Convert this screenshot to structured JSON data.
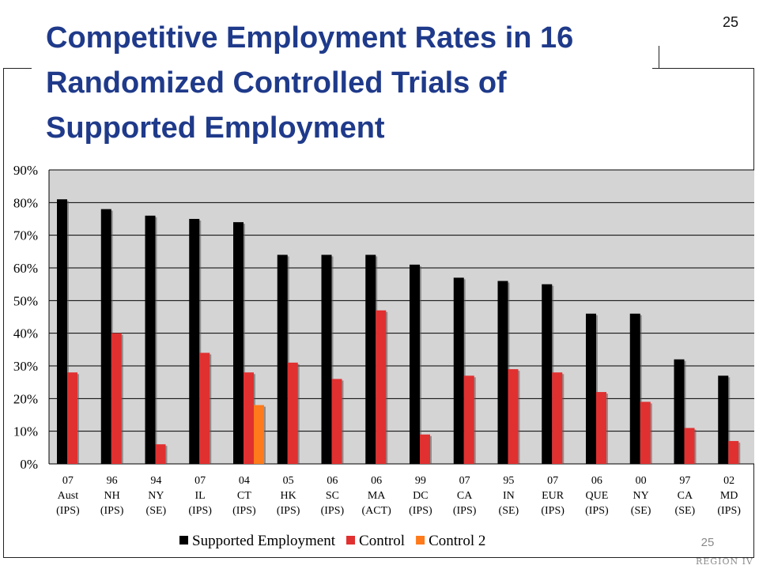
{
  "slide": {
    "title": "Competitive Employment Rates in 16 Randomized Controlled Trials of Supported Employment",
    "slide_number_top": "25",
    "slide_number_bottom": "25",
    "logo_text": "REGION IV"
  },
  "chart_data": {
    "type": "bar",
    "title": "Competitive Employment Rates in 16 Randomized Controlled Trials of Supported Employment",
    "xlabel": "",
    "ylabel": "",
    "ylim": [
      0,
      90
    ],
    "yticks": [
      "0%",
      "10%",
      "20%",
      "30%",
      "40%",
      "50%",
      "60%",
      "70%",
      "80%",
      "90%"
    ],
    "grid": true,
    "legend_position": "bottom",
    "categories": [
      [
        "07",
        "Aust",
        "(IPS)"
      ],
      [
        "96",
        "NH",
        "(IPS)"
      ],
      [
        "94",
        "NY",
        "(SE)"
      ],
      [
        "07",
        "IL",
        "(IPS)"
      ],
      [
        "04",
        "CT",
        "(IPS)"
      ],
      [
        "05",
        "HK",
        "(IPS)"
      ],
      [
        "06",
        "SC",
        "(IPS)"
      ],
      [
        "06",
        "MA",
        "(ACT)"
      ],
      [
        "99",
        "DC",
        "(IPS)"
      ],
      [
        "07",
        "CA",
        "(IPS)"
      ],
      [
        "95",
        "IN",
        "(SE)"
      ],
      [
        "07",
        "EUR",
        "(IPS)"
      ],
      [
        "06",
        "QUE",
        "(IPS)"
      ],
      [
        "00",
        "NY",
        "(SE)"
      ],
      [
        "97",
        "CA",
        "(SE)"
      ],
      [
        "02",
        "MD",
        "(IPS)"
      ]
    ],
    "series": [
      {
        "name": "Supported Employment",
        "color": "#000000",
        "values": [
          81,
          78,
          76,
          75,
          74,
          64,
          64,
          64,
          61,
          57,
          56,
          55,
          46,
          46,
          32,
          27
        ]
      },
      {
        "name": "Control",
        "color": "#e03030",
        "values": [
          28,
          40,
          6,
          34,
          28,
          31,
          26,
          47,
          9,
          27,
          29,
          28,
          22,
          19,
          11,
          7
        ]
      },
      {
        "name": "Control 2",
        "color": "#ff7a1a",
        "values": [
          null,
          null,
          null,
          null,
          18,
          null,
          null,
          null,
          null,
          null,
          null,
          null,
          null,
          null,
          null,
          null
        ]
      }
    ],
    "plot_background": "#d4d4d4"
  }
}
